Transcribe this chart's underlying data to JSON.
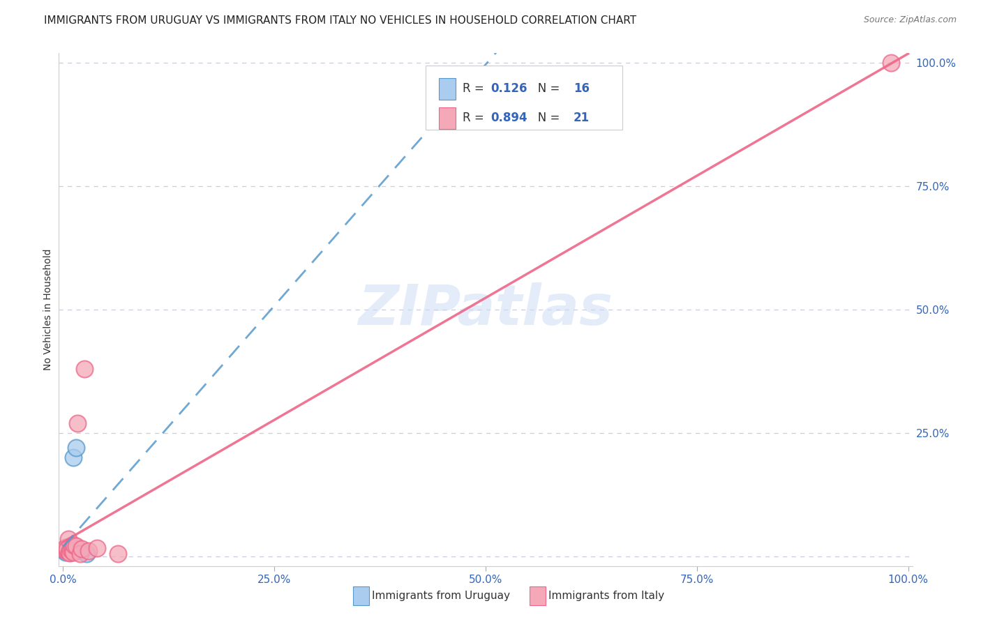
{
  "title": "IMMIGRANTS FROM URUGUAY VS IMMIGRANTS FROM ITALY NO VEHICLES IN HOUSEHOLD CORRELATION CHART",
  "source": "Source: ZipAtlas.com",
  "ylabel": "No Vehicles in Household",
  "xlim": [
    -0.005,
    1.005
  ],
  "ylim": [
    -0.02,
    1.02
  ],
  "xticks": [
    0.0,
    0.25,
    0.5,
    0.75,
    1.0
  ],
  "yticks": [
    0.0,
    0.25,
    0.5,
    0.75,
    1.0
  ],
  "xtick_labels": [
    "0.0%",
    "25.0%",
    "50.0%",
    "75.0%",
    "100.0%"
  ],
  "ytick_labels": [
    "",
    "25.0%",
    "50.0%",
    "75.0%",
    "100.0%"
  ],
  "background_color": "#ffffff",
  "watermark": "ZIPatlas",
  "uruguay_color": "#aaccee",
  "italy_color": "#f4a8b8",
  "uruguay_line_color": "#5599cc",
  "italy_line_color": "#ee6688",
  "R_uruguay": 0.126,
  "N_uruguay": 16,
  "R_italy": 0.894,
  "N_italy": 21,
  "legend_label_uruguay": "Immigrants from Uruguay",
  "legend_label_italy": "Immigrants from Italy",
  "grid_color": "#ccccdd",
  "title_fontsize": 11,
  "axis_label_fontsize": 10,
  "tick_fontsize": 11,
  "legend_fontsize": 12,
  "uruguay_x": [
    0.002,
    0.003,
    0.004,
    0.005,
    0.005,
    0.006,
    0.006,
    0.007,
    0.008,
    0.009,
    0.01,
    0.01,
    0.012,
    0.015,
    0.022,
    0.028
  ],
  "uruguay_y": [
    0.01,
    0.008,
    0.012,
    0.015,
    0.018,
    0.014,
    0.016,
    0.012,
    0.008,
    0.02,
    0.015,
    0.013,
    0.2,
    0.22,
    0.01,
    0.005
  ],
  "italy_x": [
    0.002,
    0.003,
    0.005,
    0.005,
    0.006,
    0.007,
    0.008,
    0.009,
    0.01,
    0.011,
    0.012,
    0.013,
    0.015,
    0.017,
    0.02,
    0.022,
    0.025,
    0.03,
    0.04,
    0.065,
    0.98
  ],
  "italy_y": [
    0.012,
    0.018,
    0.01,
    0.015,
    0.035,
    0.008,
    0.006,
    0.014,
    0.016,
    0.01,
    0.008,
    0.022,
    0.02,
    0.27,
    0.005,
    0.015,
    0.38,
    0.01,
    0.016,
    0.005,
    1.0
  ]
}
